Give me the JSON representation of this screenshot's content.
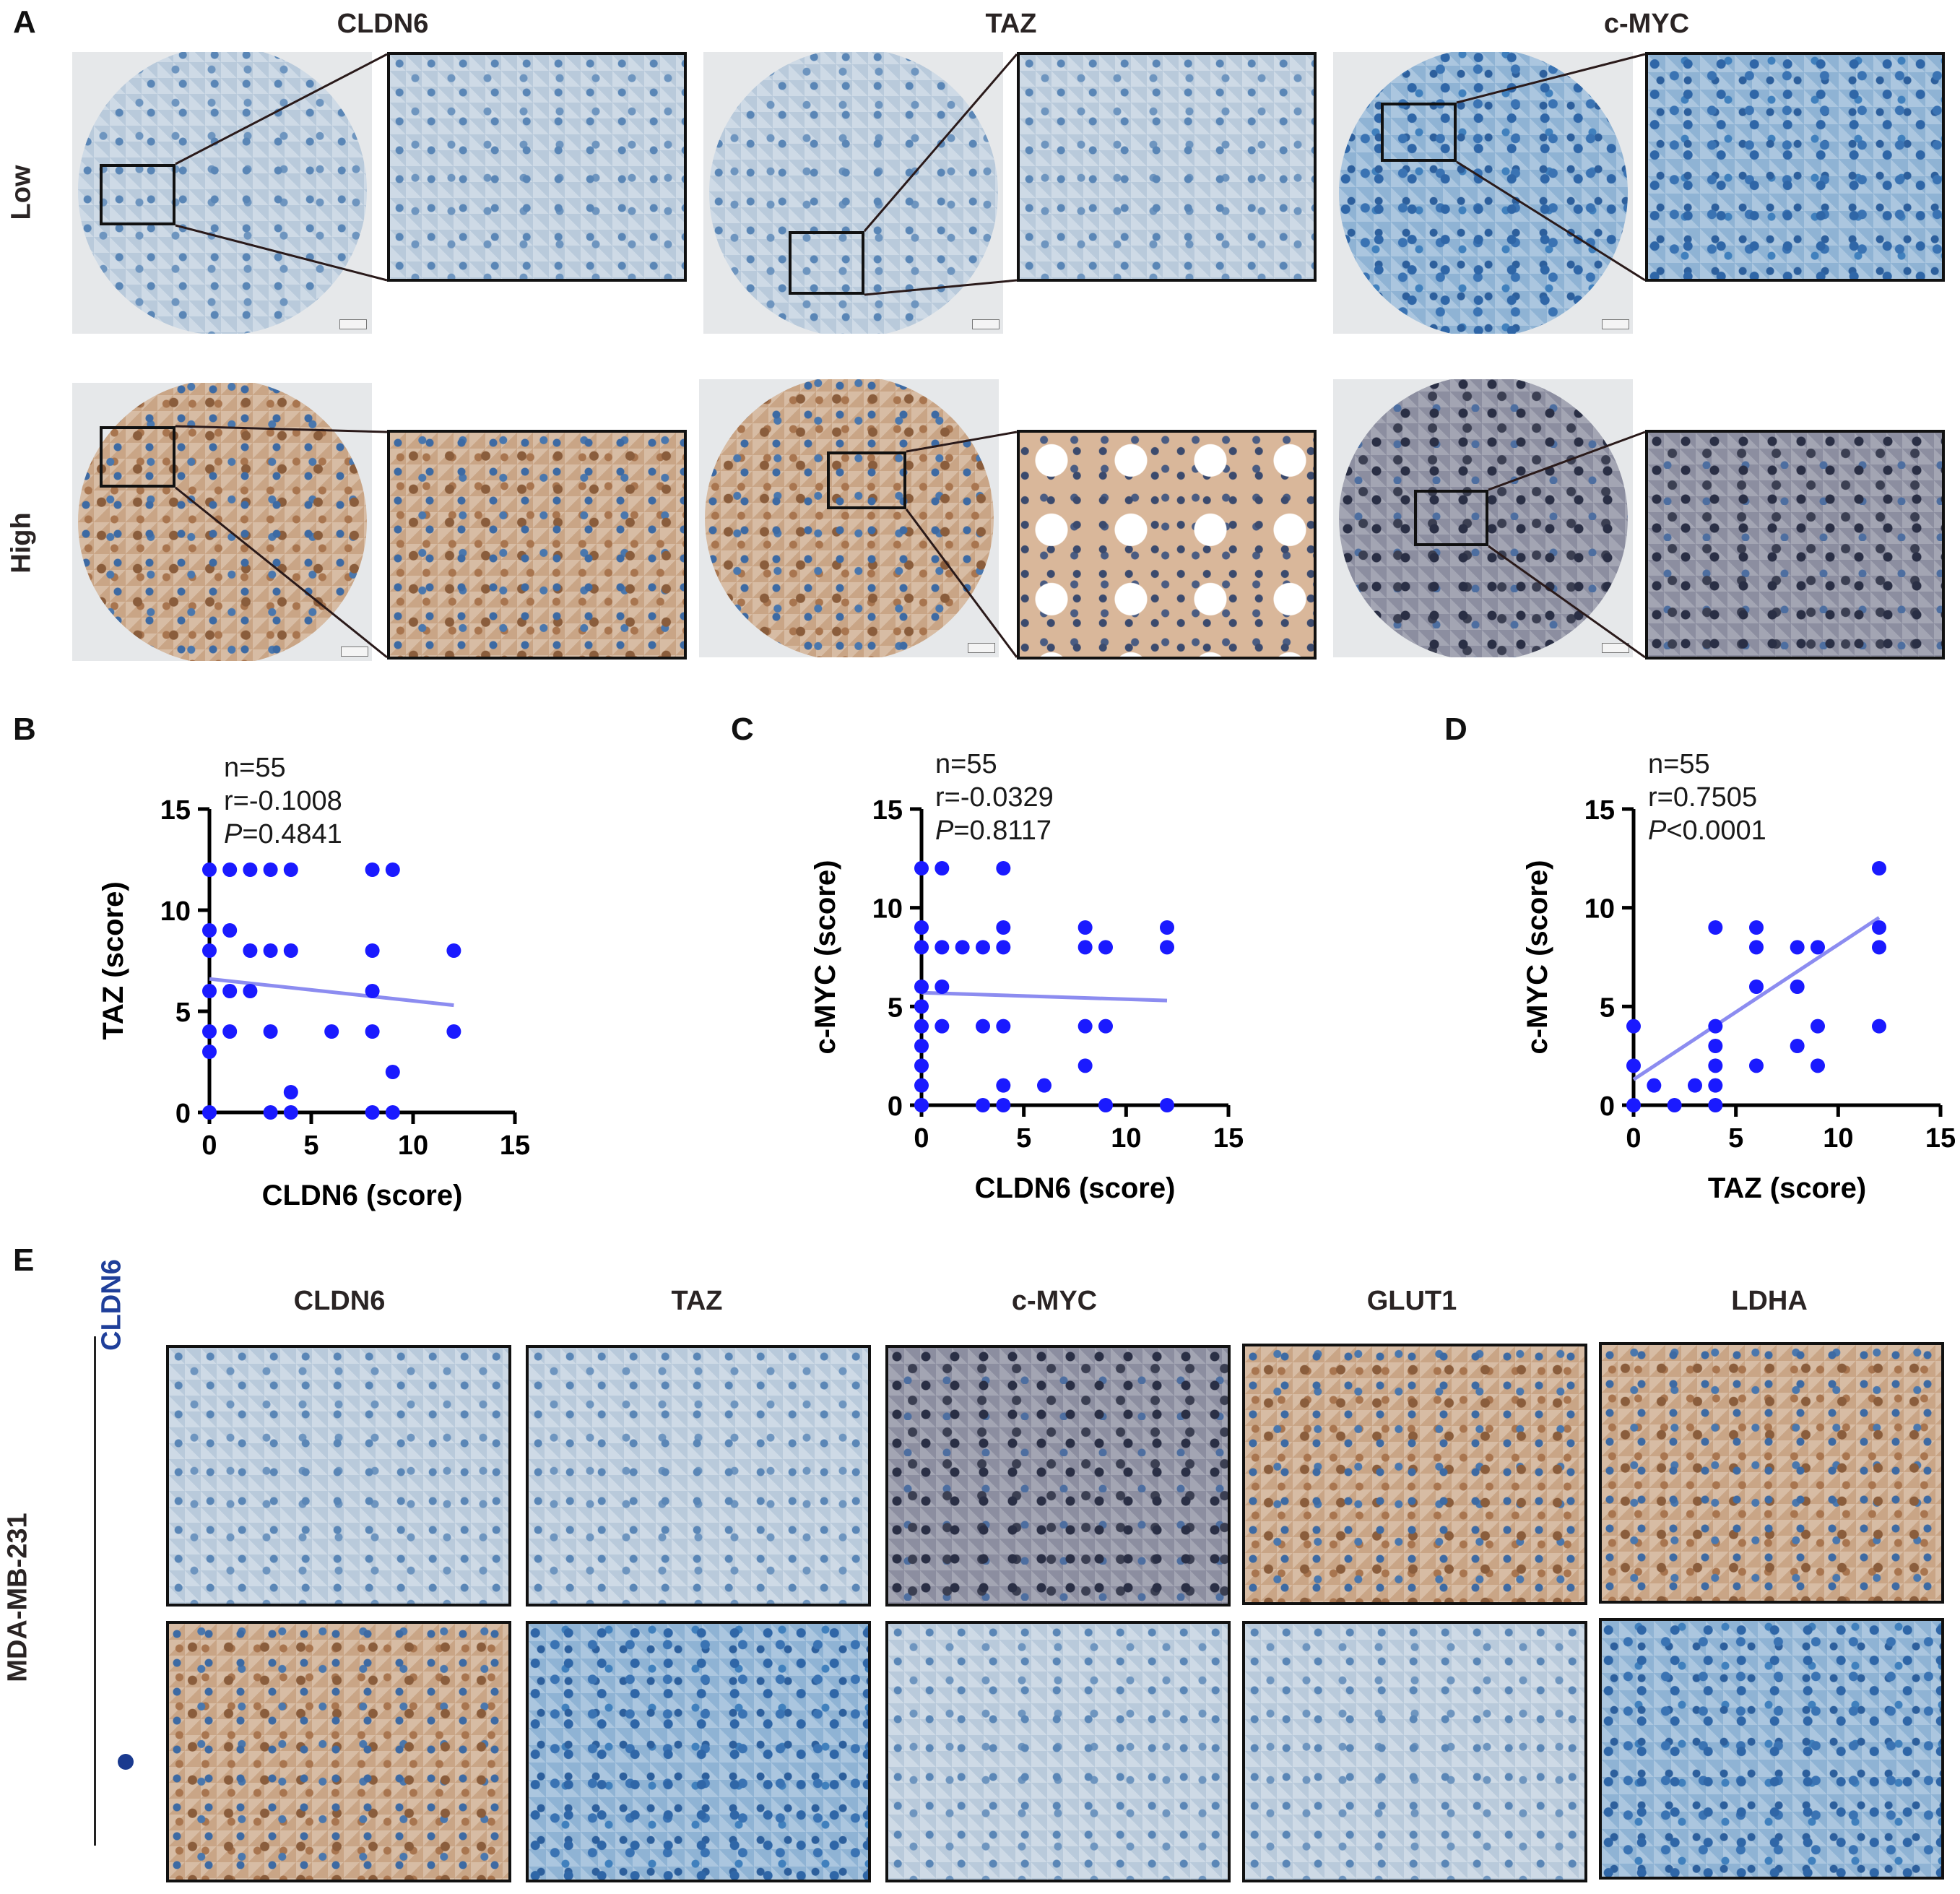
{
  "panel_letters": [
    "A",
    "B",
    "C",
    "D",
    "E"
  ],
  "panel_a": {
    "column_headers": [
      "CLDN6",
      "TAZ",
      "c-MYC"
    ],
    "row_headers": [
      "Low",
      "High"
    ]
  },
  "panel_b_stats": {
    "n": "n=55",
    "r": "r=-0.1008",
    "p_label": "P",
    "p_value": "=0.4841"
  },
  "panel_c_stats": {
    "n": "n=55",
    "r": "r=-0.0329",
    "p_label": "P",
    "p_value": "=0.8117"
  },
  "panel_d_stats": {
    "n": "n=55",
    "r": "r=0.7505",
    "p_label": "P",
    "p_value": "<0.0001"
  },
  "panel_e": {
    "column_headers": [
      "CLDN6",
      "TAZ",
      "c-MYC",
      "GLUT1",
      "LDHA"
    ],
    "group_label": "MDA-MB-231",
    "condition_label": "CLDN6",
    "condition_label_color": "#1f3f9a",
    "dot_color": "#1a3a8f"
  },
  "colors": {
    "point": "#1a1aff",
    "fit_line": "#8c8cf0",
    "axis": "#000000"
  },
  "chart_data": [
    {
      "type": "scatter",
      "xlabel": "CLDN6 (score)",
      "ylabel": "TAZ (score)",
      "xlim": [
        0,
        15
      ],
      "ylim": [
        0,
        15
      ],
      "xticks": [
        0,
        5,
        10,
        15
      ],
      "yticks": [
        0,
        5,
        10,
        15
      ],
      "fit_line": {
        "x": [
          0,
          12
        ],
        "y": [
          6.6,
          5.3
        ]
      },
      "points": [
        [
          0,
          12
        ],
        [
          0,
          9
        ],
        [
          0,
          8
        ],
        [
          0,
          6
        ],
        [
          0,
          4
        ],
        [
          0,
          3
        ],
        [
          0,
          0
        ],
        [
          1,
          12
        ],
        [
          1,
          9
        ],
        [
          1,
          6
        ],
        [
          1,
          4
        ],
        [
          2,
          12
        ],
        [
          2,
          8
        ],
        [
          2,
          6
        ],
        [
          3,
          12
        ],
        [
          3,
          8
        ],
        [
          3,
          4
        ],
        [
          3,
          0
        ],
        [
          4,
          12
        ],
        [
          4,
          8
        ],
        [
          4,
          1
        ],
        [
          4,
          0
        ],
        [
          6,
          4
        ],
        [
          8,
          12
        ],
        [
          8,
          8
        ],
        [
          8,
          6
        ],
        [
          8,
          4
        ],
        [
          8,
          0
        ],
        [
          9,
          12
        ],
        [
          9,
          2
        ],
        [
          9,
          0
        ],
        [
          12,
          8
        ],
        [
          12,
          4
        ]
      ]
    },
    {
      "type": "scatter",
      "xlabel": "CLDN6 (score)",
      "ylabel": "c-MYC (score)",
      "xlim": [
        0,
        15
      ],
      "ylim": [
        0,
        15
      ],
      "xticks": [
        0,
        5,
        10,
        15
      ],
      "yticks": [
        0,
        5,
        10,
        15
      ],
      "fit_line": {
        "x": [
          0,
          12
        ],
        "y": [
          5.7,
          5.3
        ]
      },
      "points": [
        [
          0,
          12
        ],
        [
          0,
          9
        ],
        [
          0,
          8
        ],
        [
          0,
          6
        ],
        [
          0,
          5
        ],
        [
          0,
          4
        ],
        [
          0,
          3
        ],
        [
          0,
          2
        ],
        [
          0,
          1
        ],
        [
          0,
          0
        ],
        [
          1,
          12
        ],
        [
          1,
          8
        ],
        [
          1,
          6
        ],
        [
          1,
          4
        ],
        [
          2,
          8
        ],
        [
          3,
          8
        ],
        [
          3,
          4
        ],
        [
          3,
          0
        ],
        [
          4,
          12
        ],
        [
          4,
          9
        ],
        [
          4,
          8
        ],
        [
          4,
          4
        ],
        [
          4,
          1
        ],
        [
          4,
          0
        ],
        [
          6,
          1
        ],
        [
          8,
          9
        ],
        [
          8,
          8
        ],
        [
          8,
          4
        ],
        [
          8,
          2
        ],
        [
          9,
          8
        ],
        [
          9,
          4
        ],
        [
          9,
          0
        ],
        [
          12,
          9
        ],
        [
          12,
          8
        ],
        [
          12,
          0
        ]
      ]
    },
    {
      "type": "scatter",
      "xlabel": "TAZ (score)",
      "ylabel": "c-MYC (score)",
      "xlim": [
        0,
        15
      ],
      "ylim": [
        0,
        15
      ],
      "xticks": [
        0,
        5,
        10,
        15
      ],
      "yticks": [
        0,
        5,
        10,
        15
      ],
      "fit_line": {
        "x": [
          0,
          12
        ],
        "y": [
          1.3,
          9.5
        ]
      },
      "points": [
        [
          0,
          4
        ],
        [
          0,
          2
        ],
        [
          0,
          0
        ],
        [
          1,
          1
        ],
        [
          2,
          0
        ],
        [
          3,
          1
        ],
        [
          4,
          9
        ],
        [
          4,
          4
        ],
        [
          4,
          3
        ],
        [
          4,
          2
        ],
        [
          4,
          1
        ],
        [
          4,
          0
        ],
        [
          6,
          9
        ],
        [
          6,
          8
        ],
        [
          6,
          6
        ],
        [
          6,
          2
        ],
        [
          8,
          8
        ],
        [
          8,
          6
        ],
        [
          8,
          3
        ],
        [
          9,
          8
        ],
        [
          9,
          4
        ],
        [
          9,
          2
        ],
        [
          12,
          12
        ],
        [
          12,
          9
        ],
        [
          12,
          8
        ],
        [
          12,
          4
        ]
      ]
    }
  ]
}
